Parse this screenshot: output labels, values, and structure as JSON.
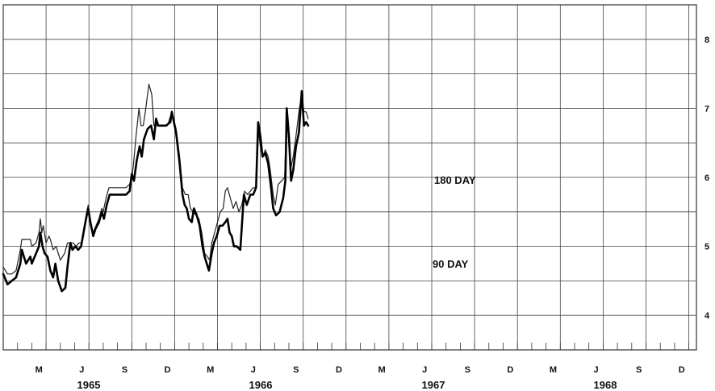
{
  "chart_data": {
    "type": "line",
    "ylim": [
      3.5,
      8.5
    ],
    "y_ticks": [
      "4",
      "5",
      "6",
      "7",
      "8"
    ],
    "month_labels": [
      "M",
      "J",
      "S",
      "D",
      "M",
      "J",
      "S",
      "D",
      "M",
      "J",
      "S",
      "D",
      "M",
      "J",
      "S",
      "D"
    ],
    "year_labels": [
      "1965",
      "1966",
      "1967",
      "1968"
    ],
    "grid": true,
    "series": [
      {
        "name": "180 DAY",
        "stroke": "thin",
        "color": "#222222",
        "points": [
          [
            0,
            4.7
          ],
          [
            0.3,
            4.6
          ],
          [
            0.6,
            4.6
          ],
          [
            0.9,
            4.65
          ],
          [
            1.2,
            4.95
          ],
          [
            1.3,
            5.1
          ],
          [
            1.6,
            5.1
          ],
          [
            1.9,
            5.1
          ],
          [
            2.0,
            5.0
          ],
          [
            2.3,
            5.05
          ],
          [
            2.5,
            5.2
          ],
          [
            2.6,
            5.4
          ],
          [
            2.7,
            5.2
          ],
          [
            2.8,
            5.3
          ],
          [
            3.0,
            5.05
          ],
          [
            3.2,
            5.15
          ],
          [
            3.3,
            5.1
          ],
          [
            3.5,
            4.95
          ],
          [
            3.7,
            5.0
          ],
          [
            4.0,
            4.8
          ],
          [
            4.3,
            4.9
          ],
          [
            4.5,
            5.05
          ],
          [
            4.7,
            5.05
          ],
          [
            4.9,
            5.05
          ],
          [
            5.1,
            5.0
          ],
          [
            5.3,
            5.05
          ],
          [
            5.5,
            5.05
          ],
          [
            5.8,
            5.45
          ],
          [
            5.95,
            5.6
          ],
          [
            6.1,
            5.3
          ],
          [
            6.3,
            5.2
          ],
          [
            6.5,
            5.3
          ],
          [
            6.7,
            5.4
          ],
          [
            6.9,
            5.55
          ],
          [
            7.0,
            5.5
          ],
          [
            7.2,
            5.7
          ],
          [
            7.4,
            5.85
          ],
          [
            7.7,
            5.85
          ],
          [
            8.0,
            5.85
          ],
          [
            8.3,
            5.85
          ],
          [
            8.6,
            5.85
          ],
          [
            8.85,
            5.9
          ],
          [
            9.0,
            6.0
          ],
          [
            9.1,
            6.15
          ],
          [
            9.3,
            6.6
          ],
          [
            9.5,
            7.0
          ],
          [
            9.65,
            6.75
          ],
          [
            9.8,
            6.75
          ],
          [
            9.95,
            6.95
          ],
          [
            10.2,
            7.35
          ],
          [
            10.4,
            7.2
          ],
          [
            10.55,
            6.75
          ],
          [
            10.8,
            6.75
          ],
          [
            11.0,
            6.75
          ],
          [
            11.2,
            6.75
          ],
          [
            11.5,
            6.75
          ],
          [
            11.8,
            6.95
          ],
          [
            12.1,
            6.7
          ],
          [
            12.35,
            6.3
          ],
          [
            12.55,
            5.85
          ],
          [
            12.75,
            5.75
          ],
          [
            12.95,
            5.75
          ],
          [
            13.1,
            5.55
          ],
          [
            13.3,
            5.5
          ],
          [
            13.5,
            5.45
          ],
          [
            13.7,
            5.4
          ],
          [
            13.9,
            5.2
          ],
          [
            14.1,
            4.9
          ],
          [
            14.3,
            4.85
          ],
          [
            14.45,
            4.8
          ],
          [
            14.6,
            5.05
          ],
          [
            14.8,
            5.2
          ],
          [
            15.0,
            5.35
          ],
          [
            15.2,
            5.5
          ],
          [
            15.4,
            5.55
          ],
          [
            15.55,
            5.8
          ],
          [
            15.7,
            5.85
          ],
          [
            15.9,
            5.7
          ],
          [
            16.1,
            5.55
          ],
          [
            16.3,
            5.65
          ],
          [
            16.5,
            5.5
          ],
          [
            16.7,
            5.6
          ],
          [
            16.9,
            5.8
          ],
          [
            17.1,
            5.75
          ],
          [
            17.3,
            5.8
          ],
          [
            17.5,
            5.85
          ],
          [
            17.7,
            5.85
          ],
          [
            17.85,
            6.7
          ],
          [
            18.0,
            6.45
          ],
          [
            18.15,
            6.3
          ],
          [
            18.35,
            6.4
          ],
          [
            18.55,
            6.3
          ],
          [
            18.7,
            6.1
          ],
          [
            18.9,
            5.75
          ],
          [
            19.05,
            5.6
          ],
          [
            19.25,
            5.9
          ],
          [
            19.5,
            5.95
          ],
          [
            19.7,
            6.0
          ],
          [
            19.85,
            6.9
          ],
          [
            20.0,
            6.5
          ],
          [
            20.15,
            6.15
          ],
          [
            20.3,
            6.3
          ],
          [
            20.5,
            6.6
          ],
          [
            20.7,
            6.95
          ],
          [
            20.9,
            7.2
          ],
          [
            21.05,
            6.95
          ],
          [
            21.2,
            6.95
          ],
          [
            21.35,
            6.85
          ]
        ]
      },
      {
        "name": "90 DAY",
        "stroke": "thick",
        "color": "#000000",
        "points": [
          [
            0,
            4.6
          ],
          [
            0.3,
            4.45
          ],
          [
            0.6,
            4.5
          ],
          [
            0.9,
            4.55
          ],
          [
            1.2,
            4.75
          ],
          [
            1.3,
            4.95
          ],
          [
            1.6,
            4.75
          ],
          [
            1.9,
            4.85
          ],
          [
            2.0,
            4.75
          ],
          [
            2.3,
            4.9
          ],
          [
            2.5,
            5.0
          ],
          [
            2.6,
            5.2
          ],
          [
            2.75,
            5.0
          ],
          [
            2.9,
            4.9
          ],
          [
            3.1,
            4.85
          ],
          [
            3.3,
            4.65
          ],
          [
            3.5,
            4.55
          ],
          [
            3.65,
            4.75
          ],
          [
            3.85,
            4.5
          ],
          [
            4.1,
            4.35
          ],
          [
            4.35,
            4.4
          ],
          [
            4.5,
            4.7
          ],
          [
            4.7,
            5.05
          ],
          [
            4.85,
            4.95
          ],
          [
            5.05,
            5.0
          ],
          [
            5.25,
            4.95
          ],
          [
            5.45,
            5.0
          ],
          [
            5.75,
            5.35
          ],
          [
            5.95,
            5.55
          ],
          [
            6.1,
            5.35
          ],
          [
            6.3,
            5.15
          ],
          [
            6.45,
            5.25
          ],
          [
            6.7,
            5.35
          ],
          [
            6.9,
            5.5
          ],
          [
            7.05,
            5.4
          ],
          [
            7.25,
            5.6
          ],
          [
            7.45,
            5.75
          ],
          [
            7.7,
            5.75
          ],
          [
            8.0,
            5.75
          ],
          [
            8.3,
            5.75
          ],
          [
            8.6,
            5.75
          ],
          [
            8.85,
            5.8
          ],
          [
            9.0,
            6.05
          ],
          [
            9.15,
            5.95
          ],
          [
            9.35,
            6.25
          ],
          [
            9.55,
            6.45
          ],
          [
            9.7,
            6.3
          ],
          [
            9.85,
            6.55
          ],
          [
            10.1,
            6.7
          ],
          [
            10.35,
            6.75
          ],
          [
            10.55,
            6.55
          ],
          [
            10.7,
            6.85
          ],
          [
            10.85,
            6.75
          ],
          [
            11.1,
            6.75
          ],
          [
            11.4,
            6.75
          ],
          [
            11.7,
            6.8
          ],
          [
            11.8,
            6.95
          ],
          [
            12.1,
            6.65
          ],
          [
            12.35,
            6.2
          ],
          [
            12.55,
            5.75
          ],
          [
            12.7,
            5.6
          ],
          [
            12.85,
            5.55
          ],
          [
            13.0,
            5.4
          ],
          [
            13.2,
            5.35
          ],
          [
            13.35,
            5.55
          ],
          [
            13.55,
            5.45
          ],
          [
            13.75,
            5.3
          ],
          [
            13.95,
            5.0
          ],
          [
            14.1,
            4.85
          ],
          [
            14.25,
            4.75
          ],
          [
            14.4,
            4.65
          ],
          [
            14.6,
            4.9
          ],
          [
            14.75,
            5.05
          ],
          [
            14.95,
            5.15
          ],
          [
            15.15,
            5.3
          ],
          [
            15.35,
            5.3
          ],
          [
            15.55,
            5.35
          ],
          [
            15.7,
            5.4
          ],
          [
            15.85,
            5.2
          ],
          [
            16.0,
            5.15
          ],
          [
            16.15,
            5.0
          ],
          [
            16.35,
            5.0
          ],
          [
            16.6,
            4.95
          ],
          [
            16.85,
            5.75
          ],
          [
            17.05,
            5.6
          ],
          [
            17.3,
            5.75
          ],
          [
            17.5,
            5.75
          ],
          [
            17.7,
            5.85
          ],
          [
            17.85,
            6.8
          ],
          [
            18.0,
            6.6
          ],
          [
            18.15,
            6.3
          ],
          [
            18.35,
            6.35
          ],
          [
            18.55,
            6.2
          ],
          [
            18.75,
            5.85
          ],
          [
            18.9,
            5.55
          ],
          [
            19.1,
            5.45
          ],
          [
            19.35,
            5.5
          ],
          [
            19.6,
            5.7
          ],
          [
            19.75,
            5.95
          ],
          [
            19.85,
            7.0
          ],
          [
            20.0,
            6.6
          ],
          [
            20.15,
            5.95
          ],
          [
            20.3,
            6.1
          ],
          [
            20.5,
            6.45
          ],
          [
            20.7,
            6.65
          ],
          [
            20.9,
            7.25
          ],
          [
            21.05,
            6.75
          ],
          [
            21.2,
            6.8
          ],
          [
            21.35,
            6.75
          ]
        ]
      }
    ]
  }
}
